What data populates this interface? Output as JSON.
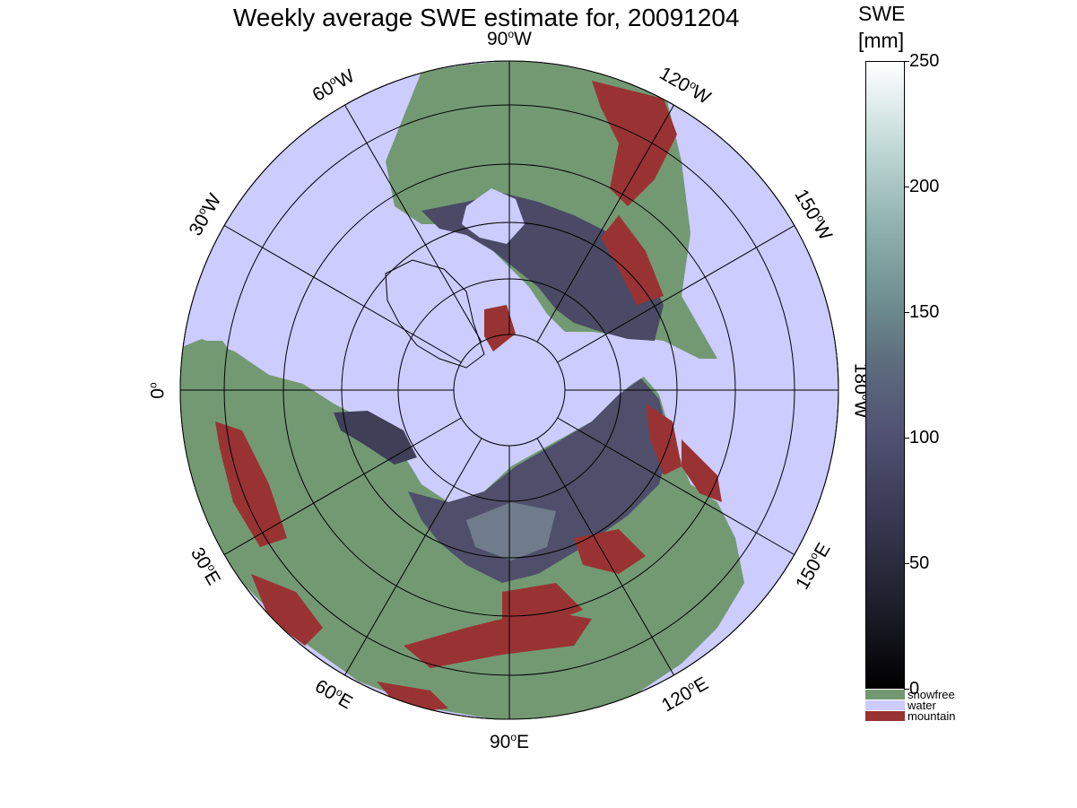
{
  "title": "Weekly average SWE estimate for, 20091204",
  "colors": {
    "water": "#ccccff",
    "snowfree": "#739973",
    "mountain": "#993333",
    "grid": "#000000"
  },
  "icons": {
    "map": "polar-stereographic-map",
    "colorbar": "swe-colorbar"
  },
  "lon_labels": [
    {
      "deg": "90",
      "dir": "W"
    },
    {
      "deg": "120",
      "dir": "W"
    },
    {
      "deg": "150",
      "dir": "W"
    },
    {
      "deg": "180",
      "dir": "W"
    },
    {
      "deg": "150",
      "dir": "E"
    },
    {
      "deg": "120",
      "dir": "E"
    },
    {
      "deg": "90",
      "dir": "E"
    },
    {
      "deg": "60",
      "dir": "E"
    },
    {
      "deg": "30",
      "dir": "E"
    },
    {
      "deg": "0",
      "dir": ""
    },
    {
      "deg": "30",
      "dir": "W"
    },
    {
      "deg": "60",
      "dir": "W"
    }
  ],
  "colorbar": {
    "label_line1": "SWE",
    "label_line2": "[mm]",
    "min": 0,
    "max": 250,
    "ticks": [
      "0",
      "50",
      "100",
      "150",
      "200",
      "250"
    ]
  },
  "legend": [
    {
      "label": "snowfree",
      "color": "#739973"
    },
    {
      "label": "water",
      "color": "#ccccff"
    },
    {
      "label": "mountain",
      "color": "#993333"
    }
  ]
}
